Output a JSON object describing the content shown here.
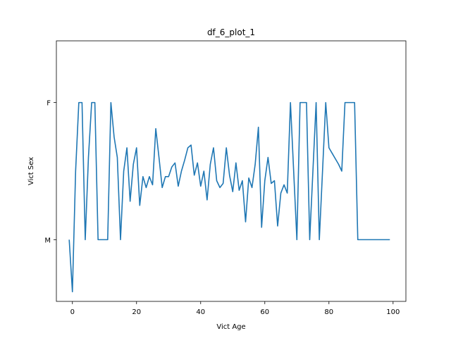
{
  "chart_data": {
    "type": "line",
    "title": "df_6_plot_1",
    "xlabel": "Vict Age",
    "ylabel": "Vict Sex",
    "xlim": [
      -5,
      104
    ],
    "ylim": [
      -0.45,
      1.45
    ],
    "grid": false,
    "legend": "none",
    "x_ticks": [
      0,
      20,
      40,
      60,
      80,
      100
    ],
    "y_ticks": [
      {
        "value": 0,
        "label": "M"
      },
      {
        "value": 1,
        "label": "F"
      }
    ],
    "series": [
      {
        "color": "#1f77b4",
        "x": [
          -1,
          0,
          1,
          2,
          3,
          4,
          5,
          6,
          7,
          8,
          9,
          10,
          11,
          12,
          13,
          14,
          15,
          16,
          17,
          18,
          19,
          20,
          21,
          22,
          23,
          24,
          25,
          26,
          27,
          28,
          29,
          30,
          31,
          32,
          33,
          34,
          35,
          36,
          37,
          38,
          39,
          40,
          41,
          42,
          43,
          44,
          45,
          46,
          47,
          48,
          49,
          50,
          51,
          52,
          53,
          54,
          55,
          56,
          57,
          58,
          59,
          60,
          61,
          62,
          63,
          64,
          65,
          66,
          67,
          68,
          69,
          70,
          71,
          72,
          73,
          74,
          75,
          76,
          77,
          78,
          79,
          80,
          81,
          82,
          83,
          84,
          85,
          86,
          87,
          88,
          89,
          90,
          91,
          92,
          93,
          94,
          95,
          96,
          97,
          98,
          99
        ],
        "y": [
          0.0,
          -0.38,
          0.5,
          1.0,
          1.0,
          0.0,
          0.6,
          1.0,
          1.0,
          0.0,
          0.0,
          0.0,
          0.0,
          1.0,
          0.75,
          0.6,
          0.0,
          0.5,
          0.67,
          0.28,
          0.55,
          0.67,
          0.25,
          0.46,
          0.38,
          0.46,
          0.4,
          0.81,
          0.6,
          0.38,
          0.46,
          0.46,
          0.53,
          0.56,
          0.39,
          0.5,
          0.58,
          0.67,
          0.69,
          0.47,
          0.56,
          0.39,
          0.5,
          0.29,
          0.55,
          0.67,
          0.43,
          0.38,
          0.41,
          0.67,
          0.47,
          0.35,
          0.56,
          0.36,
          0.43,
          0.13,
          0.45,
          0.38,
          0.55,
          0.82,
          0.09,
          0.43,
          0.6,
          0.41,
          0.43,
          0.1,
          0.34,
          0.4,
          0.34,
          1.0,
          0.5,
          0.0,
          1.0,
          1.0,
          1.0,
          0.0,
          0.5,
          1.0,
          0.0,
          0.5,
          1.0,
          0.67,
          0.63,
          0.59,
          0.55,
          0.5,
          1.0,
          1.0,
          1.0,
          1.0,
          0.0,
          0.0,
          0.0,
          0.0,
          0.0,
          0.0,
          0.0,
          0.0,
          0.0,
          0.0,
          0.0
        ]
      }
    ]
  }
}
